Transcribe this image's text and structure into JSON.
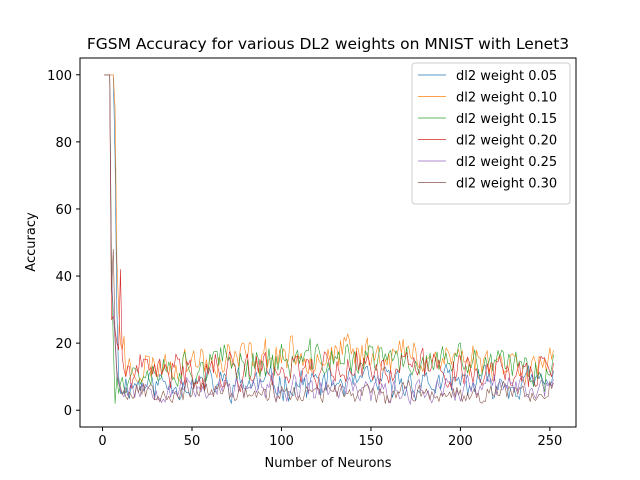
{
  "chart_data": {
    "type": "line",
    "title": "FGSM Accuracy for various DL2 weights on MNIST with Lenet3",
    "xlabel": "Number of Neurons",
    "ylabel": "Accuracy",
    "xlim": [
      -12.6,
      264.6
    ],
    "ylim": [
      -5,
      105
    ],
    "xticks": [
      0,
      50,
      100,
      150,
      200,
      250
    ],
    "yticks": [
      0,
      20,
      40,
      60,
      80,
      100
    ],
    "legend_position": "upper right",
    "x_start": 1,
    "x_end": 252,
    "series": [
      {
        "name": "dl2 weight 0.05",
        "color": "#1f77b4",
        "start": [
          100,
          100,
          100,
          100,
          100,
          100,
          75,
          30,
          10,
          5
        ],
        "base": 8,
        "amp": 6,
        "seed": 11,
        "hump": 0
      },
      {
        "name": "dl2 weight 0.10",
        "color": "#ff7f0e",
        "start": [
          100,
          100,
          100,
          100,
          100,
          100,
          90,
          45,
          30,
          20,
          18,
          22
        ],
        "base": 13,
        "amp": 7,
        "seed": 23,
        "hump": 4
      },
      {
        "name": "dl2 weight 0.15",
        "color": "#2ca02c",
        "start": [
          100,
          100,
          100,
          100,
          45,
          20,
          2,
          10,
          5,
          8
        ],
        "base": 12,
        "amp": 7,
        "seed": 37,
        "hump": 3
      },
      {
        "name": "dl2 weight 0.20",
        "color": "#d62728",
        "start": [
          100,
          100,
          100,
          100,
          27,
          28,
          24,
          20,
          18,
          42,
          16,
          12
        ],
        "base": 11,
        "amp": 7,
        "seed": 41,
        "hump": 2
      },
      {
        "name": "dl2 weight 0.25",
        "color": "#9467bd",
        "start": [
          100,
          100,
          100,
          100,
          40,
          30,
          20,
          10,
          8,
          6
        ],
        "base": 7,
        "amp": 5,
        "seed": 53,
        "hump": -1
      },
      {
        "name": "dl2 weight 0.30",
        "color": "#8c564b",
        "start": [
          100,
          100,
          100,
          100,
          35,
          48,
          22,
          12,
          8,
          7
        ],
        "base": 6,
        "amp": 4,
        "seed": 67,
        "hump": -1
      }
    ]
  }
}
